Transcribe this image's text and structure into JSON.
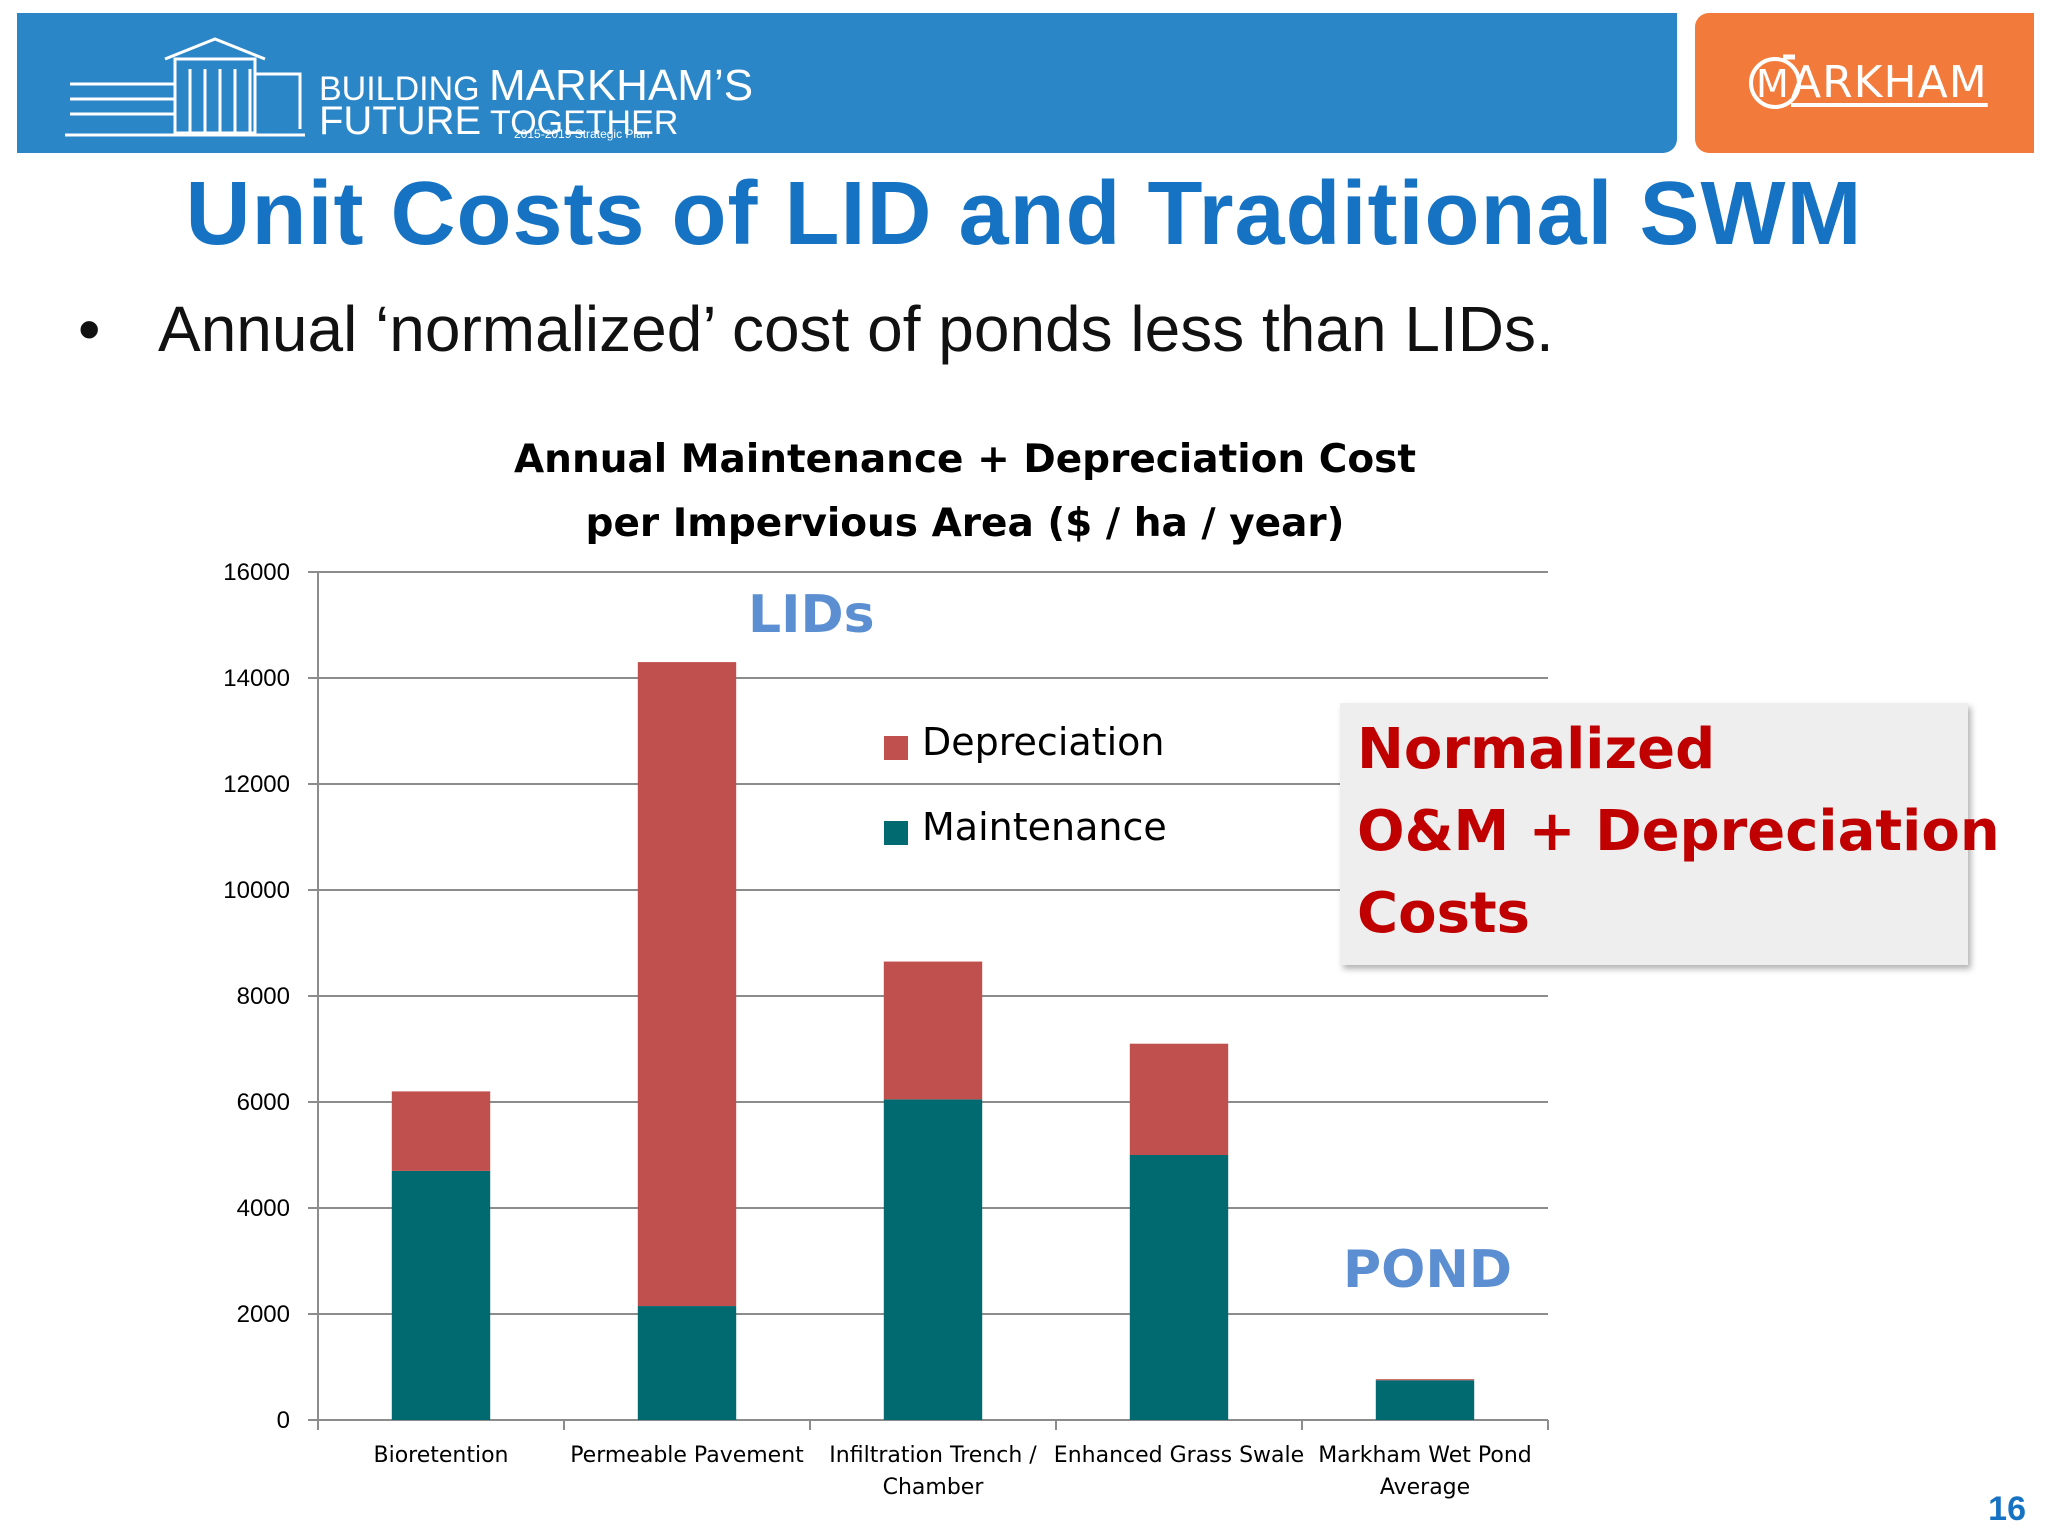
{
  "header": {
    "banner_line1_small": "BUILDING ",
    "banner_line1_big": "MARKHAM’S",
    "banner_line2_big": "FUTURE",
    "banner_line2_small": " TOGETHER",
    "banner_sub": "2015-2019 Strategic Plan",
    "brand": "ARKHAM",
    "brand_initial": "M"
  },
  "slide": {
    "title": "Unit Costs of LID and Traditional SWM",
    "bullet_mark": "•",
    "bullet": "Annual ‘normalized’ cost of ponds less than LIDs.",
    "page_number": "16"
  },
  "annotations": {
    "lids": "LIDs",
    "pond": "POND",
    "callout_line1": "Normalized",
    "callout_line2": "O&M + Depreciation",
    "callout_line3": "Costs"
  },
  "colors": {
    "maintenance": "#006a70",
    "depreciation": "#c0504d",
    "header_blue": "#2b86c8",
    "brand_orange": "#f27a3a",
    "title_blue": "#1673c3",
    "callout_red": "#c00000"
  },
  "chart_data": {
    "type": "bar",
    "stacked": true,
    "title_line1": "Annual Maintenance + Depreciation Cost",
    "title_line2": "per Impervious Area ($ / ha / year)",
    "categories": [
      [
        "Bioretention"
      ],
      [
        "Permeable Pavement"
      ],
      [
        "Infiltration Trench /",
        "Chamber"
      ],
      [
        "Enhanced Grass Swale"
      ],
      [
        "Markham Wet Pond",
        "Average"
      ]
    ],
    "series": [
      {
        "name": "Maintenance",
        "values": [
          4700,
          2150,
          6050,
          5000,
          750
        ]
      },
      {
        "name": "Depreciation",
        "values": [
          1500,
          12150,
          2600,
          2100,
          20
        ]
      }
    ],
    "legend_order": [
      "Depreciation",
      "Maintenance"
    ],
    "ylim": [
      0,
      16000
    ],
    "yticks": [
      0,
      2000,
      4000,
      6000,
      8000,
      10000,
      12000,
      14000,
      16000
    ],
    "grid": true,
    "legend_position": "inside-top"
  }
}
